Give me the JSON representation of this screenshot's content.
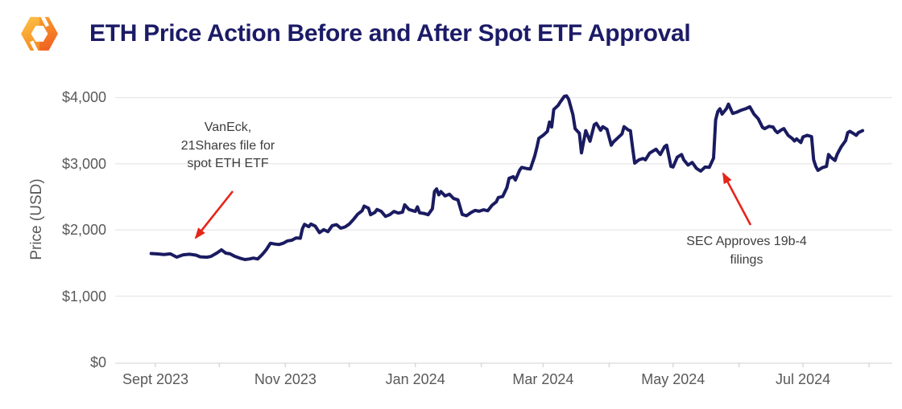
{
  "header": {
    "title": "ETH Price Action Before and After Spot ETF Approval",
    "logo": {
      "name": "hexagon-brand-logo",
      "color_light": "#fdc14a",
      "color_mid": "#f89c2d",
      "color_deep": "#f0581f"
    }
  },
  "chart_data": {
    "type": "line",
    "title": "ETH Price Action Before and After Spot ETF Approval",
    "xlabel": "",
    "ylabel": "Price (USD)",
    "ylim": [
      0,
      4200
    ],
    "grid": "horizontal",
    "legend": "none",
    "y_ticks": [
      {
        "value": 0,
        "label": "$0"
      },
      {
        "value": 1000,
        "label": "$1,000"
      },
      {
        "value": 2000,
        "label": "$2,000"
      },
      {
        "value": 3000,
        "label": "$3,000"
      },
      {
        "value": 4000,
        "label": "$4,000"
      }
    ],
    "x_ticks": [
      {
        "date": "2023-09-01",
        "label": "Sept 2023"
      },
      {
        "date": "2023-11-01",
        "label": "Nov 2023"
      },
      {
        "date": "2024-01-01",
        "label": "Jan 2024"
      },
      {
        "date": "2024-03-01",
        "label": "Mar 2024"
      },
      {
        "date": "2024-05-01",
        "label": "May 2024"
      },
      {
        "date": "2024-07-01",
        "label": "Jul 2024"
      }
    ],
    "x_minor_tick_dates": [
      "2023-09-01",
      "2023-10-01",
      "2023-11-01",
      "2023-12-01",
      "2024-01-01",
      "2024-02-01",
      "2024-03-01",
      "2024-04-01",
      "2024-05-01",
      "2024-06-01",
      "2024-07-01",
      "2024-08-01"
    ],
    "series": [
      {
        "name": "ETH price (USD)",
        "color": "#1a1b60",
        "points": [
          [
            "2023-08-30",
            1645
          ],
          [
            "2023-09-02",
            1638
          ],
          [
            "2023-09-05",
            1630
          ],
          [
            "2023-09-08",
            1640
          ],
          [
            "2023-09-11",
            1590
          ],
          [
            "2023-09-14",
            1625
          ],
          [
            "2023-09-17",
            1633
          ],
          [
            "2023-09-20",
            1620
          ],
          [
            "2023-09-22",
            1595
          ],
          [
            "2023-09-25",
            1588
          ],
          [
            "2023-09-27",
            1600
          ],
          [
            "2023-09-30",
            1655
          ],
          [
            "2023-10-02",
            1700
          ],
          [
            "2023-10-04",
            1650
          ],
          [
            "2023-10-06",
            1640
          ],
          [
            "2023-10-08",
            1605
          ],
          [
            "2023-10-11",
            1570
          ],
          [
            "2023-10-13",
            1553
          ],
          [
            "2023-10-15",
            1562
          ],
          [
            "2023-10-17",
            1575
          ],
          [
            "2023-10-19",
            1562
          ],
          [
            "2023-10-21",
            1625
          ],
          [
            "2023-10-23",
            1700
          ],
          [
            "2023-10-25",
            1800
          ],
          [
            "2023-10-27",
            1788
          ],
          [
            "2023-10-29",
            1780
          ],
          [
            "2023-10-31",
            1800
          ],
          [
            "2023-11-02",
            1835
          ],
          [
            "2023-11-04",
            1845
          ],
          [
            "2023-11-06",
            1880
          ],
          [
            "2023-11-08",
            1875
          ],
          [
            "2023-11-09",
            2020
          ],
          [
            "2023-11-10",
            2085
          ],
          [
            "2023-11-12",
            2050
          ],
          [
            "2023-11-13",
            2090
          ],
          [
            "2023-11-15",
            2058
          ],
          [
            "2023-11-17",
            1960
          ],
          [
            "2023-11-19",
            2005
          ],
          [
            "2023-11-21",
            1975
          ],
          [
            "2023-11-23",
            2065
          ],
          [
            "2023-11-25",
            2080
          ],
          [
            "2023-11-27",
            2028
          ],
          [
            "2023-11-29",
            2045
          ],
          [
            "2023-12-01",
            2090
          ],
          [
            "2023-12-03",
            2160
          ],
          [
            "2023-12-05",
            2240
          ],
          [
            "2023-12-07",
            2290
          ],
          [
            "2023-12-08",
            2360
          ],
          [
            "2023-12-10",
            2330
          ],
          [
            "2023-12-11",
            2230
          ],
          [
            "2023-12-13",
            2265
          ],
          [
            "2023-12-14",
            2310
          ],
          [
            "2023-12-16",
            2280
          ],
          [
            "2023-12-18",
            2205
          ],
          [
            "2023-12-20",
            2230
          ],
          [
            "2023-12-22",
            2280
          ],
          [
            "2023-12-24",
            2255
          ],
          [
            "2023-12-26",
            2270
          ],
          [
            "2023-12-27",
            2380
          ],
          [
            "2023-12-29",
            2310
          ],
          [
            "2023-12-31",
            2290
          ],
          [
            "2024-01-01",
            2280
          ],
          [
            "2024-01-02",
            2350
          ],
          [
            "2024-01-03",
            2260
          ],
          [
            "2024-01-05",
            2250
          ],
          [
            "2024-01-07",
            2230
          ],
          [
            "2024-01-09",
            2320
          ],
          [
            "2024-01-10",
            2580
          ],
          [
            "2024-01-11",
            2620
          ],
          [
            "2024-01-12",
            2530
          ],
          [
            "2024-01-13",
            2580
          ],
          [
            "2024-01-15",
            2515
          ],
          [
            "2024-01-17",
            2540
          ],
          [
            "2024-01-19",
            2475
          ],
          [
            "2024-01-21",
            2455
          ],
          [
            "2024-01-22",
            2350
          ],
          [
            "2024-01-23",
            2235
          ],
          [
            "2024-01-25",
            2215
          ],
          [
            "2024-01-27",
            2260
          ],
          [
            "2024-01-29",
            2295
          ],
          [
            "2024-01-31",
            2283
          ],
          [
            "2024-02-02",
            2305
          ],
          [
            "2024-02-04",
            2290
          ],
          [
            "2024-02-06",
            2372
          ],
          [
            "2024-02-08",
            2425
          ],
          [
            "2024-02-09",
            2490
          ],
          [
            "2024-02-11",
            2505
          ],
          [
            "2024-02-13",
            2640
          ],
          [
            "2024-02-14",
            2780
          ],
          [
            "2024-02-16",
            2805
          ],
          [
            "2024-02-17",
            2755
          ],
          [
            "2024-02-19",
            2905
          ],
          [
            "2024-02-20",
            2945
          ],
          [
            "2024-02-22",
            2930
          ],
          [
            "2024-02-24",
            2920
          ],
          [
            "2024-02-26",
            3110
          ],
          [
            "2024-02-27",
            3240
          ],
          [
            "2024-02-28",
            3385
          ],
          [
            "2024-03-01",
            3430
          ],
          [
            "2024-03-03",
            3490
          ],
          [
            "2024-03-04",
            3630
          ],
          [
            "2024-03-05",
            3555
          ],
          [
            "2024-03-06",
            3820
          ],
          [
            "2024-03-08",
            3880
          ],
          [
            "2024-03-09",
            3930
          ],
          [
            "2024-03-11",
            4020
          ],
          [
            "2024-03-12",
            4025
          ],
          [
            "2024-03-13",
            3975
          ],
          [
            "2024-03-15",
            3740
          ],
          [
            "2024-03-16",
            3530
          ],
          [
            "2024-03-18",
            3460
          ],
          [
            "2024-03-19",
            3165
          ],
          [
            "2024-03-20",
            3330
          ],
          [
            "2024-03-21",
            3500
          ],
          [
            "2024-03-23",
            3340
          ],
          [
            "2024-03-25",
            3590
          ],
          [
            "2024-03-26",
            3610
          ],
          [
            "2024-03-28",
            3505
          ],
          [
            "2024-03-29",
            3560
          ],
          [
            "2024-03-31",
            3520
          ],
          [
            "2024-04-02",
            3280
          ],
          [
            "2024-04-03",
            3330
          ],
          [
            "2024-04-05",
            3390
          ],
          [
            "2024-04-07",
            3450
          ],
          [
            "2024-04-08",
            3560
          ],
          [
            "2024-04-10",
            3510
          ],
          [
            "2024-04-11",
            3500
          ],
          [
            "2024-04-12",
            3240
          ],
          [
            "2024-04-13",
            3010
          ],
          [
            "2024-04-15",
            3060
          ],
          [
            "2024-04-17",
            3080
          ],
          [
            "2024-04-18",
            3060
          ],
          [
            "2024-04-20",
            3160
          ],
          [
            "2024-04-22",
            3200
          ],
          [
            "2024-04-23",
            3220
          ],
          [
            "2024-04-25",
            3140
          ],
          [
            "2024-04-27",
            3260
          ],
          [
            "2024-04-28",
            3280
          ],
          [
            "2024-04-30",
            2960
          ],
          [
            "2024-05-01",
            2950
          ],
          [
            "2024-05-03",
            3100
          ],
          [
            "2024-05-05",
            3140
          ],
          [
            "2024-05-06",
            3060
          ],
          [
            "2024-05-08",
            2980
          ],
          [
            "2024-05-10",
            3020
          ],
          [
            "2024-05-12",
            2930
          ],
          [
            "2024-05-14",
            2890
          ],
          [
            "2024-05-16",
            2950
          ],
          [
            "2024-05-18",
            2945
          ],
          [
            "2024-05-20",
            3085
          ],
          [
            "2024-05-21",
            3662
          ],
          [
            "2024-05-22",
            3790
          ],
          [
            "2024-05-23",
            3830
          ],
          [
            "2024-05-24",
            3750
          ],
          [
            "2024-05-26",
            3830
          ],
          [
            "2024-05-27",
            3900
          ],
          [
            "2024-05-29",
            3760
          ],
          [
            "2024-05-31",
            3780
          ],
          [
            "2024-06-02",
            3810
          ],
          [
            "2024-06-04",
            3830
          ],
          [
            "2024-06-06",
            3860
          ],
          [
            "2024-06-08",
            3750
          ],
          [
            "2024-06-10",
            3680
          ],
          [
            "2024-06-12",
            3550
          ],
          [
            "2024-06-13",
            3530
          ],
          [
            "2024-06-15",
            3565
          ],
          [
            "2024-06-17",
            3555
          ],
          [
            "2024-06-18",
            3500
          ],
          [
            "2024-06-19",
            3470
          ],
          [
            "2024-06-21",
            3515
          ],
          [
            "2024-06-22",
            3530
          ],
          [
            "2024-06-24",
            3430
          ],
          [
            "2024-06-26",
            3380
          ],
          [
            "2024-06-27",
            3345
          ],
          [
            "2024-06-28",
            3375
          ],
          [
            "2024-06-30",
            3320
          ],
          [
            "2024-07-01",
            3405
          ],
          [
            "2024-07-03",
            3430
          ],
          [
            "2024-07-05",
            3410
          ],
          [
            "2024-07-06",
            3060
          ],
          [
            "2024-07-07",
            2960
          ],
          [
            "2024-07-08",
            2900
          ],
          [
            "2024-07-10",
            2940
          ],
          [
            "2024-07-12",
            2960
          ],
          [
            "2024-07-13",
            3140
          ],
          [
            "2024-07-14",
            3100
          ],
          [
            "2024-07-16",
            3050
          ],
          [
            "2024-07-17",
            3140
          ],
          [
            "2024-07-18",
            3200
          ],
          [
            "2024-07-19",
            3260
          ],
          [
            "2024-07-21",
            3350
          ],
          [
            "2024-07-22",
            3470
          ],
          [
            "2024-07-23",
            3490
          ],
          [
            "2024-07-25",
            3450
          ],
          [
            "2024-07-26",
            3430
          ],
          [
            "2024-07-27",
            3470
          ],
          [
            "2024-07-29",
            3500
          ]
        ]
      }
    ],
    "annotations": [
      {
        "text": "VanEck,\n21Shares file for\nspot ETH ETF",
        "color": "#e62519",
        "arrow": {
          "from": [
            289,
            238
          ],
          "to": [
            243,
            296
          ]
        }
      },
      {
        "text": "SEC Approves 19b-4\nfilings",
        "color": "#e62519",
        "arrow": {
          "from": [
            932,
            280
          ],
          "to": [
            898,
            216
          ]
        }
      }
    ]
  }
}
